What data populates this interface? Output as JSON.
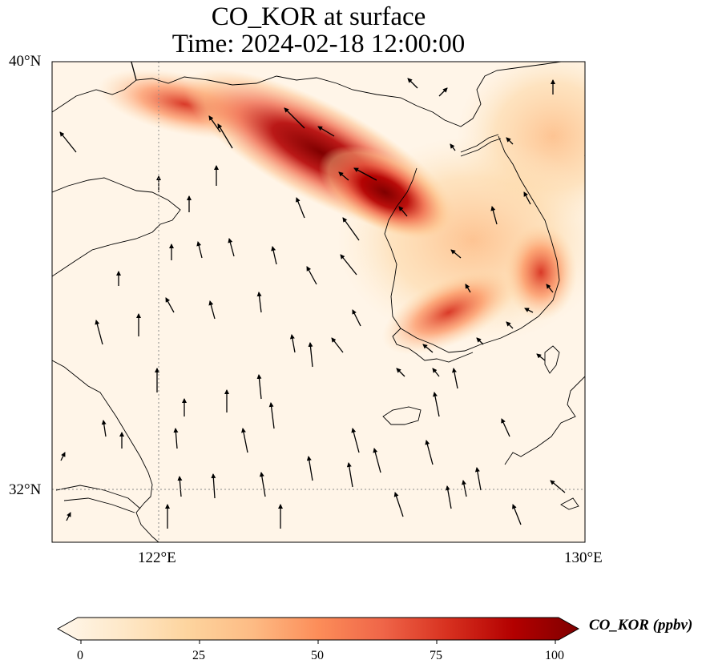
{
  "title": {
    "line1": "CO_KOR at surface",
    "line2": "Time: 2024-02-18 12:00:00"
  },
  "axes": {
    "lat_ticks": [
      {
        "label": "40°N",
        "value": 40
      },
      {
        "label": "32°N",
        "value": 32
      }
    ],
    "lon_ticks": [
      {
        "label": "122°E",
        "value": 122
      },
      {
        "label": "130°E",
        "value": 130
      }
    ],
    "lon_range": [
      120,
      130
    ],
    "lat_range": [
      31,
      40
    ],
    "gridlines": "dotted grey at labeled ticks"
  },
  "colorbar": {
    "label": "CO_KOR (ppbv)",
    "ticks": [
      "0",
      "25",
      "50",
      "75",
      "100"
    ],
    "range": [
      0,
      100
    ],
    "extend": "both",
    "colormap": [
      "#fff7ec",
      "#fee8c8",
      "#fdd49e",
      "#fdbb84",
      "#fc8d59",
      "#ef6548",
      "#d7301f",
      "#b30000",
      "#7f0000"
    ]
  },
  "colors": {
    "coastline": "#000000",
    "wind_arrow": "#000000",
    "grid": "#8a8a8a"
  }
}
